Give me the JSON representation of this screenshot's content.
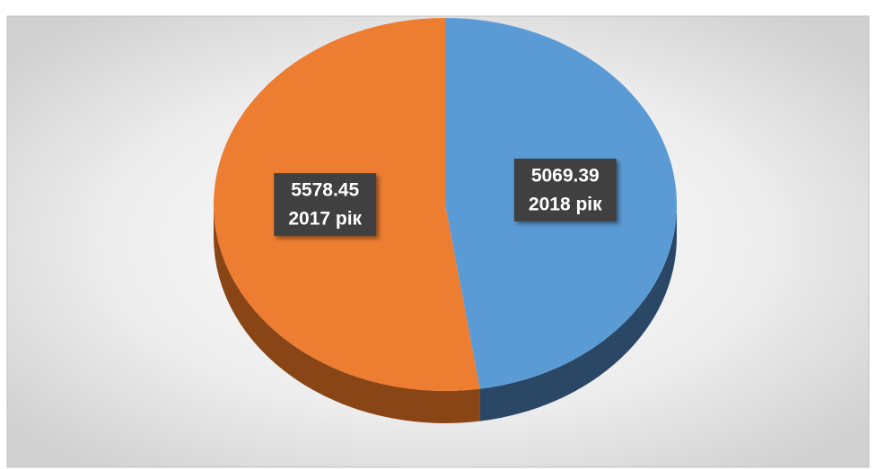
{
  "chart_data": {
    "type": "pie3d",
    "categories": [
      "2018 рік",
      "2017 рік"
    ],
    "values": [
      5069.39,
      5578.45
    ],
    "colors": [
      "#5b9bd5",
      "#ed7d31"
    ],
    "side_colors": [
      "#2b4766",
      "#8a4516"
    ]
  }
}
